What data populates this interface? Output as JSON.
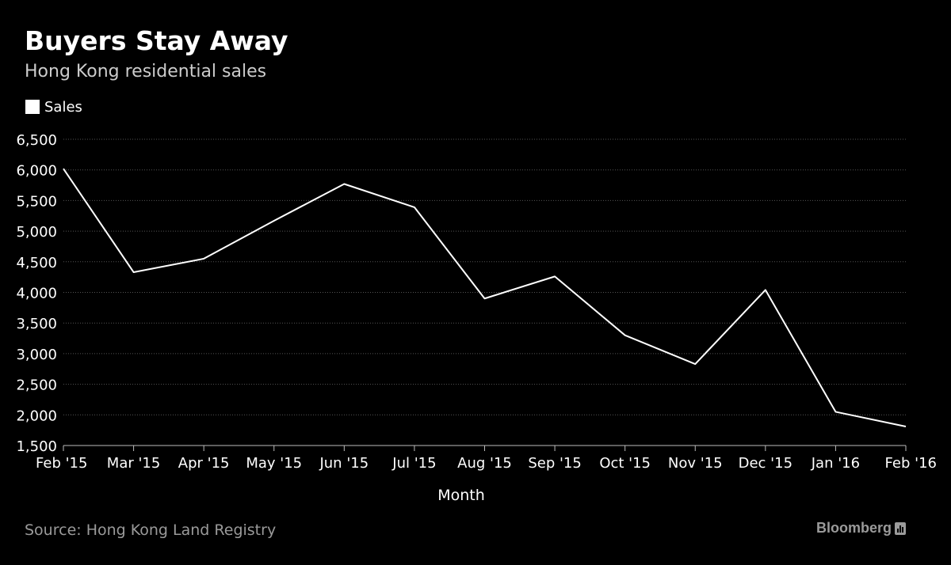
{
  "header": {
    "title": "Buyers Stay Away",
    "subtitle": "Hong Kong residential sales"
  },
  "footer": {
    "source": "Source: Hong Kong Land Registry",
    "brand": "Bloomberg",
    "brand_icon": "bloomberg-logo-icon"
  },
  "colors": {
    "background": "#000000",
    "line": "#ffffff",
    "grid": "#555555",
    "text": "#ffffff",
    "muted": "#9a9a9a"
  },
  "chart_data": {
    "type": "line",
    "title": "Buyers Stay Away",
    "subtitle": "Hong Kong residential sales",
    "xlabel": "Month",
    "ylabel": "",
    "categories": [
      "Feb '15",
      "Mar '15",
      "Apr '15",
      "May '15",
      "Jun '15",
      "Jul '15",
      "Aug '15",
      "Sep '15",
      "Oct '15",
      "Nov '15",
      "Dec '15",
      "Jan '16",
      "Feb '16"
    ],
    "series": [
      {
        "name": "Sales",
        "values": [
          6020,
          4330,
          4550,
          5170,
          5770,
          5390,
          3900,
          4260,
          3300,
          2830,
          4040,
          2050,
          1810
        ]
      }
    ],
    "ylim": [
      1500,
      6500
    ],
    "yticks": [
      1500,
      2000,
      2500,
      3000,
      3500,
      4000,
      4500,
      5000,
      5500,
      6000,
      6500
    ],
    "ytick_labels": [
      "1,500",
      "2,000",
      "2,500",
      "3,000",
      "3,500",
      "4,000",
      "4,500",
      "5,000",
      "5,500",
      "6,000",
      "6,500"
    ],
    "grid": true,
    "legend": "top-left"
  }
}
